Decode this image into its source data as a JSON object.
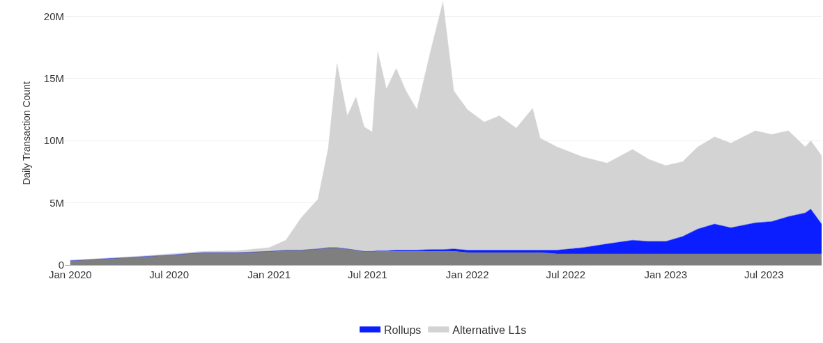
{
  "chart_data": {
    "type": "area",
    "stacked": true,
    "ylabel": "Daily Transaction Count",
    "x": [
      "2020-01-01",
      "2020-03-01",
      "2020-05-01",
      "2020-07-01",
      "2020-09-01",
      "2020-11-01",
      "2021-01-01",
      "2021-02-01",
      "2021-03-01",
      "2021-04-01",
      "2021-04-20",
      "2021-05-06",
      "2021-05-25",
      "2021-06-10",
      "2021-06-25",
      "2021-07-10",
      "2021-07-20",
      "2021-08-05",
      "2021-08-23",
      "2021-09-10",
      "2021-09-30",
      "2021-10-25",
      "2021-11-17",
      "2021-12-07",
      "2022-01-01",
      "2022-02-01",
      "2022-03-01",
      "2022-04-01",
      "2022-05-01",
      "2022-05-15",
      "2022-06-15",
      "2022-08-01",
      "2022-09-15",
      "2022-11-01",
      "2022-12-01",
      "2023-01-01",
      "2023-02-01",
      "2023-03-01",
      "2023-04-01",
      "2023-05-01",
      "2023-06-15",
      "2023-07-15",
      "2023-08-15",
      "2023-09-15",
      "2023-09-25",
      "2023-10-15"
    ],
    "series": [
      {
        "color": "#7f7f7f",
        "values": [
          350000,
          500000,
          650000,
          800000,
          1000000,
          1000000,
          1100000,
          1200000,
          1200000,
          1300000,
          1400000,
          1400000,
          1300000,
          1200000,
          1100000,
          1100000,
          1100000,
          1100000,
          1100000,
          1100000,
          1100000,
          1100000,
          1100000,
          1100000,
          1000000,
          1000000,
          1000000,
          1000000,
          1000000,
          1000000,
          900000,
          900000,
          900000,
          900000,
          900000,
          900000,
          900000,
          900000,
          900000,
          900000,
          900000,
          900000,
          900000,
          900000,
          900000,
          900000
        ]
      },
      {
        "name": "Rollups",
        "color": "#0a1eff",
        "values": [
          0,
          0,
          0,
          0,
          0,
          0,
          0,
          0,
          0,
          0,
          0,
          0,
          0,
          0,
          0,
          0,
          50000,
          50000,
          100000,
          100000,
          100000,
          150000,
          150000,
          200000,
          200000,
          200000,
          200000,
          200000,
          200000,
          200000,
          300000,
          500000,
          800000,
          1100000,
          1000000,
          1000000,
          1400000,
          2000000,
          2400000,
          2100000,
          2500000,
          2600000,
          3000000,
          3300000,
          3600000,
          2400000
        ]
      },
      {
        "name": "Alternative L1s",
        "color": "#d3d3d3",
        "values": [
          50000,
          50000,
          50000,
          100000,
          100000,
          150000,
          300000,
          800000,
          2600000,
          4000000,
          8000000,
          14800000,
          10700000,
          12300000,
          10000000,
          9600000,
          16000000,
          13000000,
          14600000,
          12800000,
          11300000,
          15900000,
          19900000,
          12700000,
          11300000,
          10300000,
          10800000,
          9800000,
          11400000,
          9000000,
          8300000,
          7300000,
          6500000,
          7300000,
          6600000,
          6100000,
          6000000,
          6600000,
          7000000,
          6800000,
          7400000,
          7000000,
          6900000,
          5300000,
          5500000,
          5500000
        ]
      }
    ],
    "xlim": [
      "2019-12-22",
      "2023-10-15"
    ],
    "xticks": [
      {
        "value": "2020-01-01",
        "label": "Jan 2020"
      },
      {
        "value": "2020-07-01",
        "label": "Jul 2020"
      },
      {
        "value": "2021-01-01",
        "label": "Jan 2021"
      },
      {
        "value": "2021-07-01",
        "label": "Jul 2021"
      },
      {
        "value": "2022-01-01",
        "label": "Jan 2022"
      },
      {
        "value": "2022-07-01",
        "label": "Jul 2022"
      },
      {
        "value": "2023-01-01",
        "label": "Jan 2023"
      },
      {
        "value": "2023-07-01",
        "label": "Jul 2023"
      }
    ],
    "ylim": [
      0,
      21200000
    ],
    "yticks": [
      0,
      {
        "value": 5000000,
        "label": "5M"
      },
      {
        "value": 10000000,
        "label": "10M"
      },
      {
        "value": 15000000,
        "label": "15M"
      },
      {
        "value": 20000000,
        "label": "20M"
      }
    ],
    "grid": "y",
    "legend": "bottom"
  }
}
